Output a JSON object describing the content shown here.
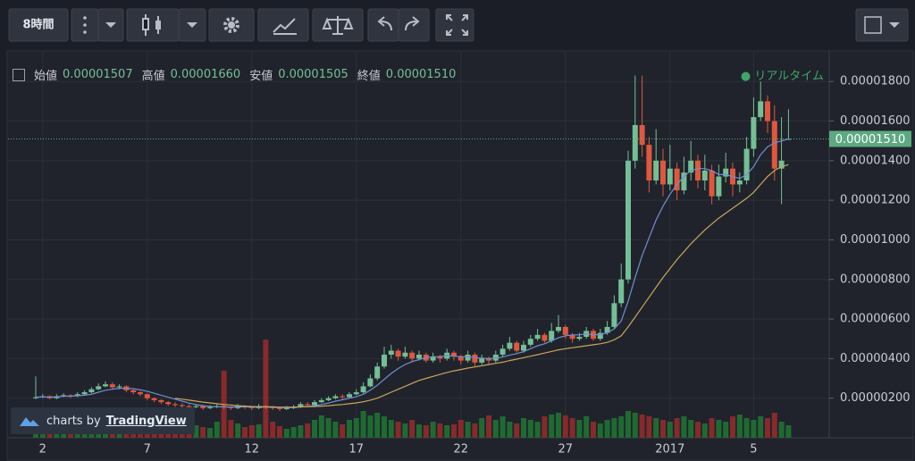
{
  "toolbar": {
    "interval": "8時間"
  },
  "chart_data": {
    "type": "candlestick",
    "categories": [
      null,
      "2",
      null,
      null,
      null,
      null,
      null,
      null,
      null,
      null,
      null,
      null,
      null,
      null,
      null,
      null,
      "7",
      null,
      null,
      null,
      null,
      null,
      null,
      null,
      null,
      null,
      null,
      null,
      null,
      null,
      null,
      "12",
      null,
      null,
      null,
      null,
      null,
      null,
      null,
      null,
      null,
      null,
      null,
      null,
      null,
      null,
      "17",
      null,
      null,
      null,
      null,
      null,
      null,
      null,
      null,
      null,
      null,
      null,
      null,
      null,
      null,
      "22",
      null,
      null,
      null,
      null,
      null,
      null,
      null,
      null,
      null,
      null,
      null,
      null,
      null,
      null,
      "27",
      null,
      null,
      null,
      null,
      null,
      null,
      null,
      null,
      null,
      null,
      null,
      null,
      null,
      null,
      "2017",
      null,
      null,
      null,
      null,
      null,
      null,
      null,
      null,
      null,
      null,
      null,
      "5",
      null,
      null,
      null,
      null,
      null
    ],
    "open": [
      2e-06,
      2.05e-06,
      2.1e-06,
      2e-06,
      2.1e-06,
      2.15e-06,
      2.1e-06,
      2.2e-06,
      2.3e-06,
      2.45e-06,
      2.6e-06,
      2.7e-06,
      2.55e-06,
      2.6e-06,
      2.4e-06,
      2.3e-06,
      2.2e-06,
      2e-06,
      1.9e-06,
      1.8e-06,
      1.7e-06,
      1.65e-06,
      1.6e-06,
      1.55e-06,
      1.6e-06,
      1.5e-06,
      1.55e-06,
      1.6e-06,
      1.55e-06,
      1.5e-06,
      1.6e-06,
      1.55e-06,
      1.5e-06,
      1.6e-06,
      1.55e-06,
      1.5e-06,
      1.45e-06,
      1.5e-06,
      1.55e-06,
      1.7e-06,
      1.65e-06,
      1.8e-06,
      1.9e-06,
      2e-06,
      2.1e-06,
      2.05e-06,
      2.2e-06,
      2.3e-06,
      2.6e-06,
      3e-06,
      3.6e-06,
      4.2e-06,
      4.4e-06,
      4.1e-06,
      4.3e-06,
      4e-06,
      4.2e-06,
      3.9e-06,
      4.1e-06,
      4e-06,
      4.3e-06,
      4.1e-06,
      3.9e-06,
      4.2e-06,
      3.8e-06,
      4e-06,
      3.9e-06,
      4.2e-06,
      4.5e-06,
      4.8e-06,
      4.4e-06,
      4.7e-06,
      5e-06,
      5.2e-06,
      4.9e-06,
      5.4e-06,
      5.6e-06,
      5.2e-06,
      5e-06,
      5.1e-06,
      5.4e-06,
      5e-06,
      5.3e-06,
      5.6e-06,
      6.8e-06,
      8e-06,
      1.4e-05,
      1.58e-05,
      1.48e-05,
      1.3e-05,
      1.4e-05,
      1.28e-05,
      1.36e-05,
      1.25e-05,
      1.34e-05,
      1.4e-05,
      1.3e-05,
      1.35e-05,
      1.22e-05,
      1.32e-05,
      1.36e-05,
      1.28e-05,
      1.3e-05,
      1.46e-05,
      1.62e-05,
      1.7e-05,
      1.6e-05,
      1.36e-05,
      1.507e-05
    ],
    "high": [
      3.1e-06,
      2.2e-06,
      2.15e-06,
      2.2e-06,
      2.25e-06,
      2.2e-06,
      2.3e-06,
      2.4e-06,
      2.55e-06,
      2.75e-06,
      2.85e-06,
      2.8e-06,
      2.7e-06,
      2.65e-06,
      2.45e-06,
      2.35e-06,
      2.25e-06,
      2.05e-06,
      1.95e-06,
      1.85e-06,
      1.8e-06,
      1.75e-06,
      1.7e-06,
      1.7e-06,
      1.65e-06,
      1.65e-06,
      1.7e-06,
      1.7e-06,
      1.6e-06,
      1.7e-06,
      1.65e-06,
      1.6e-06,
      1.7e-06,
      1.65e-06,
      1.6e-06,
      1.55e-06,
      1.6e-06,
      1.65e-06,
      1.8e-06,
      1.8e-06,
      1.9e-06,
      2e-06,
      2.1e-06,
      2.2e-06,
      2.2e-06,
      2.3e-06,
      2.45e-06,
      2.8e-06,
      3.2e-06,
      3.8e-06,
      4.6e-06,
      4.7e-06,
      4.5e-06,
      4.6e-06,
      4.4e-06,
      4.4e-06,
      4.3e-06,
      4.3e-06,
      4.2e-06,
      4.5e-06,
      4.4e-06,
      4.2e-06,
      4.4e-06,
      4.3e-06,
      4.2e-06,
      4.1e-06,
      4.4e-06,
      4.7e-06,
      5.1e-06,
      4.9e-06,
      4.9e-06,
      5.2e-06,
      5.5e-06,
      5.3e-06,
      5.8e-06,
      6.2e-06,
      5.7e-06,
      5.3e-06,
      5.3e-06,
      5.6e-06,
      5.5e-06,
      5.5e-06,
      5.9e-06,
      7.2e-06,
      8.8e-06,
      1.45e-05,
      1.83e-05,
      1.83e-05,
      1.52e-05,
      1.56e-05,
      1.46e-05,
      1.48e-05,
      1.39e-05,
      1.42e-05,
      1.5e-05,
      1.43e-05,
      1.43e-05,
      1.38e-05,
      1.38e-05,
      1.44e-05,
      1.39e-05,
      1.34e-05,
      1.52e-05,
      1.72e-05,
      1.8e-05,
      1.73e-05,
      1.68e-05,
      1.62e-05,
      1.66e-05
    ],
    "low": [
      1.95e-06,
      2e-06,
      1.95e-06,
      1.95e-06,
      2.05e-06,
      2e-06,
      2.05e-06,
      2.15e-06,
      2.25e-06,
      2.4e-06,
      2.55e-06,
      2.45e-06,
      2.45e-06,
      2.3e-06,
      2.2e-06,
      2.1e-06,
      1.9e-06,
      1.8e-06,
      1.7e-06,
      1.6e-06,
      1.55e-06,
      1.5e-06,
      1.45e-06,
      1.5e-06,
      1.4e-06,
      1.45e-06,
      1.5e-06,
      1.45e-06,
      1.4e-06,
      1.45e-06,
      1.45e-06,
      1.4e-06,
      1.45e-06,
      1.45e-06,
      1.4e-06,
      1.35e-06,
      1.4e-06,
      1.45e-06,
      1.5e-06,
      1.55e-06,
      1.6e-06,
      1.75e-06,
      1.85e-06,
      1.95e-06,
      1.95e-06,
      2e-06,
      2.15e-06,
      2.25e-06,
      2.55e-06,
      2.9e-06,
      3.5e-06,
      4e-06,
      3.9e-06,
      4e-06,
      3.8e-06,
      3.9e-06,
      3.8e-06,
      3.8e-06,
      3.8e-06,
      3.9e-06,
      3.9e-06,
      3.7e-06,
      3.8e-06,
      3.6e-06,
      3.7e-06,
      3.7e-06,
      3.8e-06,
      4.1e-06,
      4.4e-06,
      4.3e-06,
      4.3e-06,
      4.6e-06,
      4.9e-06,
      4.8e-06,
      4.8e-06,
      5.3e-06,
      5e-06,
      4.8e-06,
      4.9e-06,
      5e-06,
      4.9e-06,
      4.9e-06,
      5.2e-06,
      5.5e-06,
      6.6e-06,
      7.8e-06,
      1.36e-05,
      1.42e-05,
      1.24e-05,
      1.28e-05,
      1.22e-05,
      1.25e-05,
      1.2e-05,
      1.23e-05,
      1.3e-05,
      1.26e-05,
      1.25e-05,
      1.18e-05,
      1.2e-05,
      1.29e-05,
      1.22e-05,
      1.24e-05,
      1.28e-05,
      1.42e-05,
      1.6e-05,
      1.54e-05,
      1.3e-05,
      1.18e-05,
      1.505e-05
    ],
    "close": [
      2.05e-06,
      2.1e-06,
      2e-06,
      2.1e-06,
      2.15e-06,
      2.1e-06,
      2.2e-06,
      2.3e-06,
      2.45e-06,
      2.6e-06,
      2.7e-06,
      2.55e-06,
      2.6e-06,
      2.4e-06,
      2.3e-06,
      2.2e-06,
      2e-06,
      1.9e-06,
      1.8e-06,
      1.7e-06,
      1.65e-06,
      1.6e-06,
      1.55e-06,
      1.6e-06,
      1.5e-06,
      1.55e-06,
      1.6e-06,
      1.55e-06,
      1.5e-06,
      1.6e-06,
      1.55e-06,
      1.5e-06,
      1.6e-06,
      1.55e-06,
      1.5e-06,
      1.45e-06,
      1.5e-06,
      1.55e-06,
      1.7e-06,
      1.65e-06,
      1.8e-06,
      1.9e-06,
      2e-06,
      2.1e-06,
      2.05e-06,
      2.2e-06,
      2.3e-06,
      2.6e-06,
      3e-06,
      3.6e-06,
      4.2e-06,
      4.4e-06,
      4.1e-06,
      4.3e-06,
      4e-06,
      4.2e-06,
      3.9e-06,
      4.1e-06,
      4e-06,
      4.3e-06,
      4.1e-06,
      3.9e-06,
      4.2e-06,
      3.8e-06,
      4e-06,
      3.9e-06,
      4.2e-06,
      4.5e-06,
      4.8e-06,
      4.4e-06,
      4.7e-06,
      5e-06,
      5.2e-06,
      4.9e-06,
      5.4e-06,
      5.6e-06,
      5.2e-06,
      5e-06,
      5.1e-06,
      5.4e-06,
      5e-06,
      5.3e-06,
      5.6e-06,
      6.8e-06,
      8e-06,
      1.4e-05,
      1.58e-05,
      1.48e-05,
      1.3e-05,
      1.4e-05,
      1.28e-05,
      1.36e-05,
      1.25e-05,
      1.34e-05,
      1.4e-05,
      1.3e-05,
      1.35e-05,
      1.22e-05,
      1.32e-05,
      1.36e-05,
      1.28e-05,
      1.3e-05,
      1.46e-05,
      1.62e-05,
      1.7e-05,
      1.6e-05,
      1.36e-05,
      1.4e-05,
      1.51e-05
    ],
    "volume": [
      10,
      12,
      9,
      11,
      10,
      14,
      12,
      15,
      18,
      16,
      14,
      12,
      10,
      9,
      11,
      10,
      9,
      12,
      10,
      11,
      13,
      10,
      9,
      14,
      12,
      11,
      18,
      75,
      20,
      16,
      12,
      14,
      15,
      110,
      18,
      13,
      10,
      12,
      14,
      16,
      20,
      25,
      22,
      18,
      15,
      20,
      22,
      30,
      25,
      28,
      24,
      20,
      18,
      16,
      20,
      15,
      14,
      18,
      16,
      14,
      15,
      20,
      18,
      16,
      22,
      25,
      20,
      24,
      18,
      16,
      22,
      20,
      18,
      24,
      26,
      28,
      25,
      22,
      20,
      24,
      18,
      16,
      20,
      22,
      24,
      30,
      28,
      26,
      24,
      22,
      20,
      18,
      22,
      24,
      20,
      18,
      16,
      22,
      20,
      18,
      24,
      26,
      22,
      20,
      24,
      22,
      28,
      18,
      14
    ],
    "lines": [
      {
        "color": "#6f8fd6",
        "values": [
          2.05e-06,
          2.07e-06,
          2.05e-06,
          2.07e-06,
          2.1e-06,
          2.1e-06,
          2.12e-06,
          2.15e-06,
          2.2e-06,
          2.3e-06,
          2.4e-06,
          2.45e-06,
          2.5e-06,
          2.5e-06,
          2.48e-06,
          2.42e-06,
          2.35e-06,
          2.25e-06,
          2.15e-06,
          2.05e-06,
          1.95e-06,
          1.85e-06,
          1.75e-06,
          1.68e-06,
          1.62e-06,
          1.58e-06,
          1.57e-06,
          1.56e-06,
          1.55e-06,
          1.56e-06,
          1.56e-06,
          1.55e-06,
          1.55e-06,
          1.55e-06,
          1.54e-06,
          1.52e-06,
          1.52e-06,
          1.52e-06,
          1.56e-06,
          1.58e-06,
          1.62e-06,
          1.68e-06,
          1.75e-06,
          1.85e-06,
          1.92e-06,
          2e-06,
          2.08e-06,
          2.2e-06,
          2.4e-06,
          2.65e-06,
          2.95e-06,
          3.25e-06,
          3.5e-06,
          3.7e-06,
          3.85e-06,
          3.95e-06,
          4.05e-06,
          4.1e-06,
          4.1e-06,
          4.15e-06,
          4.12e-06,
          4.1e-06,
          4.1e-06,
          4.05e-06,
          4.02e-06,
          4e-06,
          4.02e-06,
          4.08e-06,
          4.18e-06,
          4.25e-06,
          4.35e-06,
          4.5e-06,
          4.65e-06,
          4.75e-06,
          4.9e-06,
          5.05e-06,
          5.15e-06,
          5.2e-06,
          5.2e-06,
          5.25e-06,
          5.2e-06,
          5.22e-06,
          5.3e-06,
          5.5e-06,
          5.9e-06,
          6.9e-06,
          8.1e-06,
          9.2e-06,
          1.01e-05,
          1.1e-05,
          1.17e-05,
          1.23e-05,
          1.28e-05,
          1.32e-05,
          1.35e-05,
          1.36e-05,
          1.36e-05,
          1.35e-05,
          1.33e-05,
          1.33e-05,
          1.32e-05,
          1.31e-05,
          1.33e-05,
          1.37e-05,
          1.43e-05,
          1.47e-05,
          1.49e-05,
          1.5e-05,
          1.51e-05
        ]
      },
      {
        "color": "#c9a55c",
        "values": [
          null,
          null,
          null,
          null,
          null,
          null,
          null,
          null,
          null,
          null,
          null,
          null,
          null,
          null,
          null,
          null,
          null,
          null,
          null,
          null,
          2e-06,
          1.95e-06,
          1.9e-06,
          1.85e-06,
          1.8e-06,
          1.76e-06,
          1.72e-06,
          1.68e-06,
          1.65e-06,
          1.62e-06,
          1.6e-06,
          1.58e-06,
          1.57e-06,
          1.56e-06,
          1.56e-06,
          1.55e-06,
          1.55e-06,
          1.55e-06,
          1.56e-06,
          1.57e-06,
          1.58e-06,
          1.6e-06,
          1.62e-06,
          1.65e-06,
          1.68e-06,
          1.72e-06,
          1.76e-06,
          1.82e-06,
          1.9e-06,
          2e-06,
          2.15e-06,
          2.3e-06,
          2.45e-06,
          2.6e-06,
          2.75e-06,
          2.9e-06,
          3e-06,
          3.1e-06,
          3.2e-06,
          3.3e-06,
          3.38e-06,
          3.45e-06,
          3.52e-06,
          3.58e-06,
          3.64e-06,
          3.7e-06,
          3.76e-06,
          3.82e-06,
          3.9e-06,
          3.97e-06,
          4.05e-06,
          4.12e-06,
          4.2e-06,
          4.28e-06,
          4.36e-06,
          4.44e-06,
          4.5e-06,
          4.55e-06,
          4.6e-06,
          4.65e-06,
          4.7e-06,
          4.75e-06,
          4.82e-06,
          4.95e-06,
          5.15e-06,
          5.6e-06,
          6.1e-06,
          6.6e-06,
          7.1e-06,
          7.6e-06,
          8.1e-06,
          8.55e-06,
          9e-06,
          9.4e-06,
          9.8e-06,
          1.015e-05,
          1.05e-05,
          1.08e-05,
          1.11e-05,
          1.135e-05,
          1.16e-05,
          1.185e-05,
          1.21e-05,
          1.24e-05,
          1.28e-05,
          1.32e-05,
          1.35e-05,
          1.37e-05,
          1.38e-05
        ]
      }
    ],
    "up_color": "#74bf95",
    "down_color": "#e0573f",
    "volume_up_color": "#1f6a32",
    "volume_down_color": "#862a2c",
    "ylim": [
      0,
      1.95e-05
    ],
    "yticks": [
      {
        "value": 2e-06,
        "label": "0.00000200"
      },
      {
        "value": 4e-06,
        "label": "0.00000400"
      },
      {
        "value": 6e-06,
        "label": "0.00000600"
      },
      {
        "value": 8e-06,
        "label": "0.00000800"
      },
      {
        "value": 1e-05,
        "label": "0.00001000"
      },
      {
        "value": 1.2e-05,
        "label": "0.00001200"
      },
      {
        "value": 1.4e-05,
        "label": "0.00001400"
      },
      {
        "value": 1.6e-05,
        "label": "0.00001600"
      },
      {
        "value": 1.8e-05,
        "label": "0.00001800"
      }
    ],
    "grid": true,
    "last_price": {
      "value": 1.51e-05,
      "label": "0.00001510",
      "color": "#5ea982"
    },
    "legend": [
      {
        "label": "始値",
        "value": "0.00001507"
      },
      {
        "label": "高値",
        "value": "0.00001660"
      },
      {
        "label": "安値",
        "value": "0.00001505"
      },
      {
        "label": "終値",
        "value": "0.00001510"
      }
    ],
    "status": "リアルタイム",
    "watermark": {
      "prefix": "charts by",
      "brand": "TradingView"
    }
  }
}
